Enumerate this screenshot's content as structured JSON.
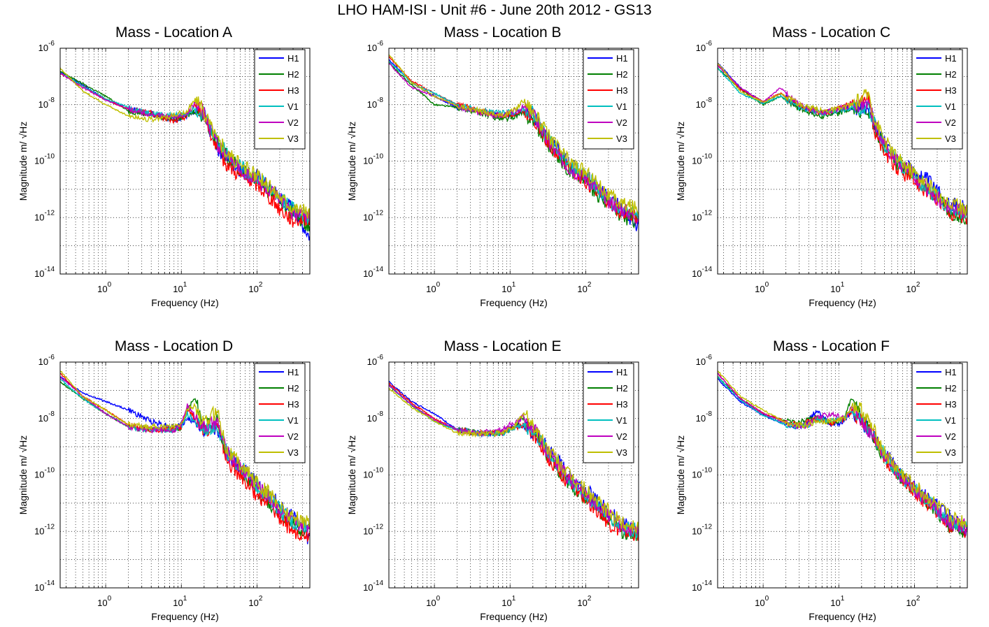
{
  "figure": {
    "title": "LHO HAM-ISI - Unit #6 - June 20th 2012 - GS13"
  },
  "chart_data": [
    {
      "type": "line",
      "title": "Mass - Location A",
      "xlabel": "Frequency (Hz)",
      "ylabel": "Magnitude m/ √Hz",
      "xscale": "log",
      "yscale": "log",
      "xlim": [
        0.25,
        500
      ],
      "ylim": [
        1e-14,
        1e-06
      ],
      "legend": "top-right",
      "grid": true,
      "x": [
        0.25,
        0.5,
        1,
        2,
        4,
        8,
        12,
        15,
        20,
        30,
        40,
        60,
        100,
        150,
        200,
        300,
        500
      ],
      "series": [
        {
          "name": "H1",
          "color": "#0000ff",
          "values": [
            1.5e-07,
            5e-08,
            1.5e-08,
            7e-09,
            5e-09,
            3e-09,
            4e-09,
            5e-09,
            4e-09,
            3e-10,
            1.2e-10,
            5e-11,
            3e-11,
            1e-11,
            5e-12,
            2e-12,
            2e-13
          ]
        },
        {
          "name": "H2",
          "color": "#007f00",
          "values": [
            1.5e-07,
            5.5e-08,
            2e-08,
            6e-09,
            4.5e-09,
            3e-09,
            4e-09,
            6e-09,
            4e-09,
            4e-10,
            1.5e-10,
            5e-11,
            2e-11,
            8e-12,
            4e-12,
            1.5e-12,
            5e-13
          ]
        },
        {
          "name": "H3",
          "color": "#ff0000",
          "values": [
            1.3e-07,
            4.5e-08,
            1.5e-08,
            7e-09,
            5e-09,
            2.5e-09,
            4e-09,
            1e-08,
            5e-09,
            2e-10,
            8e-11,
            3e-11,
            1.5e-11,
            5e-12,
            2e-12,
            8e-13,
            1e-12
          ]
        },
        {
          "name": "V1",
          "color": "#00bfbf",
          "values": [
            1.4e-07,
            4.5e-08,
            1.6e-08,
            8e-09,
            5e-09,
            4e-09,
            5e-09,
            8e-09,
            5e-09,
            5e-10,
            2e-10,
            6e-11,
            2.5e-11,
            1e-11,
            5e-12,
            2e-12,
            1e-12
          ]
        },
        {
          "name": "V2",
          "color": "#bf00bf",
          "values": [
            1.3e-07,
            4e-08,
            1.5e-08,
            7e-09,
            4.5e-09,
            3.5e-09,
            5e-09,
            1.2e-08,
            5e-09,
            4e-10,
            1.5e-10,
            5e-11,
            2e-11,
            8e-12,
            4e-12,
            1.5e-12,
            1e-12
          ]
        },
        {
          "name": "V3",
          "color": "#bfbf00",
          "values": [
            2e-07,
            3e-08,
            1e-08,
            4e-09,
            3e-09,
            4e-09,
            6e-09,
            1.5e-08,
            6e-09,
            6e-10,
            2e-10,
            7e-11,
            3e-11,
            1.2e-11,
            6e-12,
            2.5e-12,
            1.5e-12
          ]
        }
      ]
    },
    {
      "type": "line",
      "title": "Mass - Location B",
      "xlabel": "Frequency (Hz)",
      "ylabel": "Magnitude m/ √Hz",
      "xscale": "log",
      "yscale": "log",
      "xlim": [
        0.25,
        500
      ],
      "ylim": [
        1e-14,
        1e-06
      ],
      "legend": "top-right",
      "grid": true,
      "x": [
        0.25,
        0.5,
        1,
        2,
        4,
        8,
        12,
        15,
        20,
        30,
        40,
        60,
        100,
        150,
        200,
        300,
        500
      ],
      "series": [
        {
          "name": "H1",
          "color": "#0000ff",
          "values": [
            4e-07,
            6e-08,
            2e-08,
            8e-09,
            6e-09,
            4e-09,
            5e-09,
            6e-09,
            4e-09,
            8e-10,
            3e-10,
            8e-11,
            3e-11,
            1e-11,
            5e-12,
            2e-12,
            5e-13
          ]
        },
        {
          "name": "H2",
          "color": "#007f00",
          "values": [
            3e-07,
            5e-08,
            1e-08,
            8e-09,
            5e-09,
            3e-09,
            4e-09,
            5e-09,
            3e-09,
            5e-10,
            2e-10,
            5e-11,
            2e-11,
            6e-12,
            3e-12,
            1e-12,
            8e-13
          ]
        },
        {
          "name": "H3",
          "color": "#ff0000",
          "values": [
            5e-07,
            7e-08,
            2.5e-08,
            1e-08,
            6e-09,
            4e-09,
            5e-09,
            6e-09,
            4e-09,
            6e-10,
            2e-10,
            6e-11,
            2e-11,
            8e-12,
            3e-12,
            1.5e-12,
            1e-12
          ]
        },
        {
          "name": "V1",
          "color": "#00bfbf",
          "values": [
            3.5e-07,
            6e-08,
            2.5e-08,
            1e-08,
            6e-09,
            5e-09,
            6e-09,
            7e-09,
            5e-09,
            8e-10,
            3e-10,
            7e-11,
            3e-11,
            1e-11,
            4e-12,
            2e-12,
            1e-12
          ]
        },
        {
          "name": "V2",
          "color": "#bf00bf",
          "values": [
            3e-07,
            4e-08,
            2e-08,
            9e-09,
            5e-09,
            4e-09,
            6e-09,
            8e-09,
            5e-09,
            6e-10,
            2e-10,
            6e-11,
            2.5e-11,
            9e-12,
            4e-12,
            2e-12,
            1e-12
          ]
        },
        {
          "name": "V3",
          "color": "#bfbf00",
          "values": [
            6e-07,
            6e-08,
            2e-08,
            9e-09,
            6e-09,
            4e-09,
            7e-09,
            1.5e-08,
            6e-09,
            1e-09,
            4e-10,
            1e-10,
            4e-11,
            1.5e-11,
            6e-12,
            3e-12,
            2e-12
          ]
        }
      ]
    },
    {
      "type": "line",
      "title": "Mass - Location C",
      "xlabel": "Frequency (Hz)",
      "ylabel": "Magnitude m/ √Hz",
      "xscale": "log",
      "yscale": "log",
      "xlim": [
        0.25,
        500
      ],
      "ylim": [
        1e-14,
        1e-06
      ],
      "legend": "top-right",
      "grid": true,
      "x": [
        0.25,
        0.5,
        1,
        1.7,
        3,
        6,
        10,
        15,
        25,
        30,
        40,
        60,
        100,
        150,
        200,
        300,
        500
      ],
      "series": [
        {
          "name": "H1",
          "color": "#0000ff",
          "values": [
            3e-07,
            4e-08,
            1.2e-08,
            2.5e-08,
            8e-09,
            5e-09,
            6e-09,
            8e-09,
            7e-09,
            2e-09,
            5e-10,
            1e-10,
            4e-11,
            2e-11,
            8e-12,
            3e-12,
            2e-12
          ]
        },
        {
          "name": "H2",
          "color": "#007f00",
          "values": [
            2e-07,
            3.5e-08,
            1e-08,
            2e-08,
            7e-09,
            4e-09,
            5e-09,
            7e-09,
            6e-09,
            1.5e-09,
            3e-10,
            8e-11,
            3e-11,
            1e-11,
            5e-12,
            1.5e-12,
            1e-12
          ]
        },
        {
          "name": "H3",
          "color": "#ff0000",
          "values": [
            2.5e-07,
            3.5e-08,
            1.3e-08,
            2.5e-08,
            9e-09,
            5e-09,
            7e-09,
            1.2e-08,
            1.5e-08,
            1e-09,
            2e-10,
            5e-11,
            2e-11,
            8e-12,
            4e-12,
            1.5e-12,
            1e-12
          ]
        },
        {
          "name": "V1",
          "color": "#00bfbf",
          "values": [
            2e-07,
            2.5e-08,
            1.1e-08,
            2e-08,
            8e-09,
            5e-09,
            6e-09,
            8e-09,
            7e-09,
            2e-09,
            4e-10,
            1e-10,
            3e-11,
            1e-11,
            6e-12,
            2e-12,
            1.5e-12
          ]
        },
        {
          "name": "V2",
          "color": "#bf00bf",
          "values": [
            2.5e-07,
            4e-08,
            1.2e-08,
            4e-08,
            1e-08,
            5e-09,
            7e-09,
            1e-08,
            1e-08,
            2e-09,
            4e-10,
            9e-11,
            3e-11,
            1e-11,
            5e-12,
            2e-12,
            1.5e-12
          ]
        },
        {
          "name": "V3",
          "color": "#bfbf00",
          "values": [
            3e-07,
            3e-08,
            1.2e-08,
            2.5e-08,
            1e-08,
            6e-09,
            7e-09,
            1e-08,
            2.5e-08,
            3e-09,
            6e-10,
            1.2e-10,
            4e-11,
            1.5e-11,
            7e-12,
            3e-12,
            2e-12
          ]
        }
      ]
    },
    {
      "type": "line",
      "title": "Mass - Location D",
      "xlabel": "Frequency (Hz)",
      "ylabel": "Magnitude m/ √Hz",
      "xscale": "log",
      "yscale": "log",
      "xlim": [
        0.25,
        500
      ],
      "ylim": [
        1e-14,
        1e-06
      ],
      "legend": "top-right",
      "grid": true,
      "x": [
        0.25,
        0.5,
        1,
        2,
        4,
        8,
        10,
        12,
        15,
        20,
        30,
        40,
        60,
        100,
        150,
        200,
        300,
        500
      ],
      "series": [
        {
          "name": "H1",
          "color": "#0000ff",
          "values": [
            3e-07,
            8e-08,
            4e-08,
            2e-08,
            8e-09,
            5e-09,
            6e-09,
            1e-08,
            8e-09,
            4e-09,
            5e-09,
            5e-10,
            2e-10,
            5e-11,
            2e-11,
            8e-12,
            3e-12,
            5e-13
          ]
        },
        {
          "name": "H2",
          "color": "#007f00",
          "values": [
            2e-07,
            5e-08,
            1.5e-08,
            5e-09,
            4e-09,
            4e-09,
            5e-09,
            2e-08,
            5e-08,
            5e-09,
            8e-09,
            5e-10,
            1.5e-10,
            3e-11,
            1e-11,
            5e-12,
            1.5e-12,
            1e-12
          ]
        },
        {
          "name": "H3",
          "color": "#ff0000",
          "values": [
            4e-07,
            6e-08,
            2e-08,
            6e-09,
            4e-09,
            4e-09,
            5e-09,
            2.5e-08,
            1e-08,
            4e-09,
            6e-09,
            3e-10,
            1e-10,
            2e-11,
            8e-12,
            3e-12,
            1e-12,
            8e-13
          ]
        },
        {
          "name": "V1",
          "color": "#00bfbf",
          "values": [
            2.5e-07,
            5e-08,
            1.5e-08,
            5e-09,
            4e-09,
            4e-09,
            5e-09,
            1.5e-08,
            8e-09,
            4e-09,
            6e-09,
            6e-10,
            2e-10,
            4e-11,
            1.5e-11,
            6e-12,
            2e-12,
            1.5e-12
          ]
        },
        {
          "name": "V2",
          "color": "#bf00bf",
          "values": [
            3e-07,
            6e-08,
            1.5e-08,
            5e-09,
            4e-09,
            4e-09,
            6e-09,
            3e-08,
            1.2e-08,
            5e-09,
            7e-09,
            6e-10,
            2e-10,
            4e-11,
            1.5e-11,
            6e-12,
            2e-12,
            1.5e-12
          ]
        },
        {
          "name": "V3",
          "color": "#bfbf00",
          "values": [
            5e-07,
            6e-08,
            2e-08,
            6e-09,
            5e-09,
            5e-09,
            6e-09,
            2e-08,
            3e-08,
            6e-09,
            2e-08,
            8e-10,
            2.5e-10,
            5e-11,
            2e-11,
            8e-12,
            3e-12,
            2e-12
          ]
        }
      ]
    },
    {
      "type": "line",
      "title": "Mass - Location E",
      "xlabel": "Frequency (Hz)",
      "ylabel": "Magnitude m/ √Hz",
      "xscale": "log",
      "yscale": "log",
      "xlim": [
        0.25,
        500
      ],
      "ylim": [
        1e-14,
        1e-06
      ],
      "legend": "top-right",
      "grid": true,
      "x": [
        0.25,
        0.5,
        1,
        2,
        4,
        8,
        12,
        15,
        20,
        30,
        40,
        60,
        100,
        150,
        200,
        300,
        500
      ],
      "series": [
        {
          "name": "H1",
          "color": "#0000ff",
          "values": [
            2e-07,
            4e-08,
            1.5e-08,
            4e-09,
            3e-09,
            3e-09,
            6e-09,
            5e-09,
            3e-09,
            1e-09,
            4e-10,
            1e-10,
            3e-11,
            1e-11,
            5e-12,
            2e-12,
            1e-12
          ]
        },
        {
          "name": "H2",
          "color": "#007f00",
          "values": [
            1.5e-07,
            3e-08,
            8e-09,
            4e-09,
            3e-09,
            3e-09,
            6e-09,
            1e-08,
            4e-09,
            6e-10,
            2e-10,
            5e-11,
            1.5e-11,
            6e-12,
            3e-12,
            1e-12,
            8e-13
          ]
        },
        {
          "name": "H3",
          "color": "#ff0000",
          "values": [
            1.8e-07,
            3.5e-08,
            1e-08,
            4e-09,
            3e-09,
            3e-09,
            5e-09,
            6e-09,
            3e-09,
            5e-10,
            2e-10,
            5e-11,
            1.5e-11,
            5e-12,
            2e-12,
            1e-12,
            8e-13
          ]
        },
        {
          "name": "V1",
          "color": "#00bfbf",
          "values": [
            1.5e-07,
            3e-08,
            8e-09,
            4e-09,
            3e-09,
            3e-09,
            5e-09,
            6e-09,
            4e-09,
            8e-10,
            3e-10,
            7e-11,
            2e-11,
            8e-12,
            4e-12,
            1.5e-12,
            1e-12
          ]
        },
        {
          "name": "V2",
          "color": "#bf00bf",
          "values": [
            1.5e-07,
            3e-08,
            9e-09,
            4e-09,
            3e-09,
            4e-09,
            8e-09,
            1.2e-08,
            5e-09,
            8e-10,
            3e-10,
            7e-11,
            2e-11,
            8e-12,
            4e-12,
            1.5e-12,
            1e-12
          ]
        },
        {
          "name": "V3",
          "color": "#bfbf00",
          "values": [
            1.2e-07,
            2.5e-08,
            8e-09,
            3e-09,
            3e-09,
            3e-09,
            6e-09,
            1.5e-08,
            6e-09,
            1e-09,
            4e-10,
            1e-10,
            3e-11,
            1e-11,
            5e-12,
            2e-12,
            1.5e-12
          ]
        }
      ]
    },
    {
      "type": "line",
      "title": "Mass - Location F",
      "xlabel": "Frequency (Hz)",
      "ylabel": "Magnitude m/ √Hz",
      "xscale": "log",
      "yscale": "log",
      "xlim": [
        0.25,
        500
      ],
      "ylim": [
        1e-14,
        1e-06
      ],
      "legend": "top-right",
      "grid": true,
      "x": [
        0.25,
        0.5,
        1,
        2,
        3,
        4,
        5,
        8,
        12,
        15,
        20,
        30,
        40,
        60,
        100,
        150,
        200,
        300,
        500
      ],
      "series": [
        {
          "name": "H1",
          "color": "#0000ff",
          "values": [
            2.5e-07,
            4e-08,
            1.3e-08,
            6e-09,
            5e-09,
            8e-09,
            2e-08,
            6e-09,
            8e-09,
            2e-08,
            8e-09,
            2e-09,
            6e-10,
            1.5e-10,
            4e-11,
            1.5e-11,
            8e-12,
            3e-12,
            1e-12
          ]
        },
        {
          "name": "H2",
          "color": "#007f00",
          "values": [
            3e-07,
            5e-08,
            1.5e-08,
            8e-09,
            7e-09,
            1e-08,
            1e-08,
            7e-09,
            1e-08,
            6e-08,
            1e-08,
            2e-09,
            4e-10,
            1e-10,
            3e-11,
            1e-11,
            5e-12,
            1.5e-12,
            1e-12
          ]
        },
        {
          "name": "H3",
          "color": "#ff0000",
          "values": [
            4e-07,
            5e-08,
            1.5e-08,
            8e-09,
            6e-09,
            8e-09,
            1e-08,
            7e-09,
            1e-08,
            2e-08,
            8e-09,
            2e-09,
            4e-10,
            1e-10,
            2.5e-11,
            1e-11,
            5e-12,
            1.5e-12,
            1e-12
          ]
        },
        {
          "name": "V1",
          "color": "#00bfbf",
          "values": [
            3e-07,
            4.5e-08,
            1.3e-08,
            6e-09,
            5e-09,
            6e-09,
            1e-08,
            8e-09,
            1e-08,
            2e-08,
            8e-09,
            2e-09,
            5e-10,
            1.2e-10,
            3e-11,
            1.2e-11,
            6e-12,
            2e-12,
            1.5e-12
          ]
        },
        {
          "name": "V2",
          "color": "#bf00bf",
          "values": [
            4e-07,
            5e-08,
            1.5e-08,
            7e-09,
            5e-09,
            6e-09,
            1e-08,
            1.5e-08,
            1e-08,
            2.5e-08,
            8e-09,
            2e-09,
            5e-10,
            1.2e-10,
            3e-11,
            1.2e-11,
            6e-12,
            2e-12,
            1.5e-12
          ]
        },
        {
          "name": "V3",
          "color": "#bfbf00",
          "values": [
            5e-07,
            6e-08,
            2e-08,
            7e-09,
            6e-09,
            6e-09,
            8e-09,
            8e-09,
            1e-08,
            3e-08,
            2e-08,
            3e-09,
            6e-10,
            1.5e-10,
            4e-11,
            1.5e-11,
            8e-12,
            3e-12,
            2e-12
          ]
        }
      ]
    }
  ]
}
